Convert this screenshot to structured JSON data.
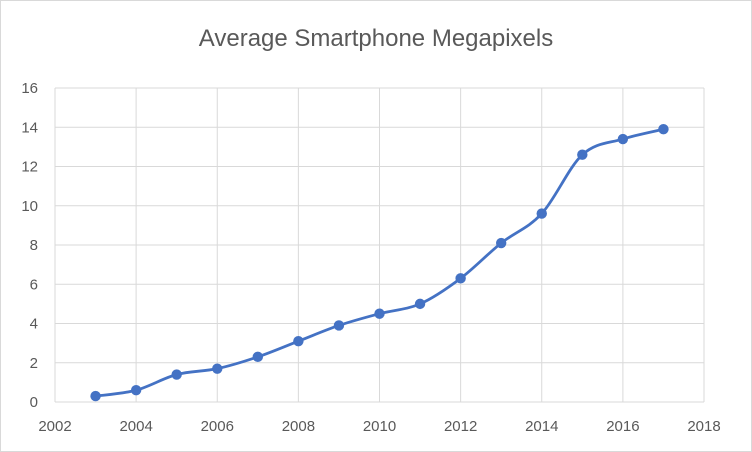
{
  "chart_data": {
    "type": "scatter",
    "title": "Average Smartphone Megapixels",
    "xlabel": "",
    "ylabel": "",
    "xlim": [
      2002,
      2018
    ],
    "ylim": [
      0,
      16
    ],
    "x_ticks": [
      2002,
      2004,
      2006,
      2008,
      2010,
      2012,
      2014,
      2016,
      2018
    ],
    "y_ticks": [
      0,
      2,
      4,
      6,
      8,
      10,
      12,
      14,
      16
    ],
    "grid": "vertical-and-horizontal",
    "legend": "none",
    "smooth_line": true,
    "series": [
      {
        "color": "#4472c4",
        "x": [
          2003,
          2004,
          2005,
          2006,
          2007,
          2008,
          2009,
          2010,
          2011,
          2012,
          2013,
          2014,
          2015,
          2016,
          2017
        ],
        "y": [
          0.3,
          0.6,
          1.4,
          1.7,
          2.3,
          3.1,
          3.9,
          4.5,
          5.0,
          6.3,
          8.1,
          9.6,
          12.6,
          13.4,
          13.9
        ]
      }
    ]
  }
}
